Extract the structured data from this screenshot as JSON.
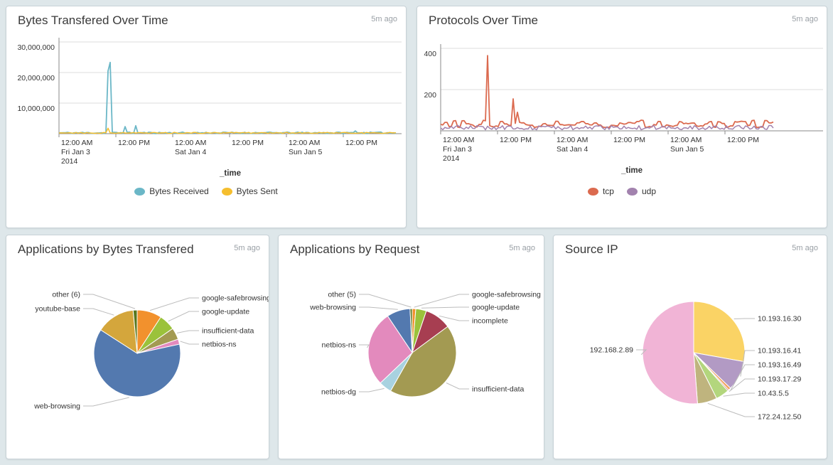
{
  "page": {
    "background": "#dee7ea"
  },
  "panels": [
    {
      "title": "Bytes Transfered Over Time",
      "ago": "5m ago"
    },
    {
      "title": "Protocols Over Time",
      "ago": "5m ago"
    },
    {
      "title": "Applications by Bytes Transfered",
      "ago": "5m ago"
    },
    {
      "title": "Applications by Request",
      "ago": "5m ago"
    },
    {
      "title": "Source IP",
      "ago": "5m ago"
    }
  ],
  "chart_data": [
    {
      "type": "line",
      "title": "Bytes Transfered Over Time",
      "xlabel": "_time",
      "x_ticks": [
        {
          "t": "12:00 AM",
          "d": "Fri Jan 3",
          "y": "2014"
        },
        {
          "t": "12:00 PM"
        },
        {
          "t": "12:00 AM",
          "d": "Sat Jan 4"
        },
        {
          "t": "12:00 PM"
        },
        {
          "t": "12:00 AM",
          "d": "Sun Jan 5"
        },
        {
          "t": "12:00 PM"
        }
      ],
      "y_ticks": [
        "10,000,000",
        "20,000,000",
        "30,000,000"
      ],
      "ylim": [
        0,
        32500000
      ],
      "grid": "horizontal",
      "legend_position": "bottom",
      "legend": [
        "Bytes Received",
        "Bytes Sent"
      ],
      "series": [
        {
          "name": "Bytes Received",
          "color": "#6bb7c7",
          "noise_min": 30000,
          "noise_max": 520000,
          "spikes": [
            [
              0.1425,
              20500000
            ],
            [
              0.1495,
              23300000
            ],
            [
              0.198,
              2300000
            ],
            [
              0.229,
              2600000
            ],
            [
              0.88,
              900000
            ]
          ]
        },
        {
          "name": "Bytes Sent",
          "color": "#f5be2e",
          "noise_min": 80000,
          "noise_max": 430000,
          "spikes": [
            [
              0.146,
              1800000
            ]
          ]
        }
      ]
    },
    {
      "type": "line",
      "title": "Protocols Over Time",
      "xlabel": "_time",
      "x_ticks": [
        {
          "t": "12:00 AM",
          "d": "Fri Jan 3",
          "y": "2014"
        },
        {
          "t": "12:00 PM"
        },
        {
          "t": "12:00 AM",
          "d": "Sat Jan 4"
        },
        {
          "t": "12:00 PM"
        },
        {
          "t": "12:00 AM",
          "d": "Sun Jan 5"
        },
        {
          "t": "12:00 PM"
        }
      ],
      "y_ticks": [
        "200",
        "400"
      ],
      "ylim": [
        0,
        430
      ],
      "grid": "horizontal",
      "legend_position": "bottom",
      "legend": [
        "tcp",
        "udp"
      ],
      "series": [
        {
          "name": "tcp",
          "color": "#db6a4f",
          "noise_min": 16,
          "noise_max": 52,
          "spikes": [
            [
              0.138,
              170
            ],
            [
              0.1425,
              365
            ],
            [
              0.2166,
              155
            ],
            [
              0.232,
              90
            ]
          ]
        },
        {
          "name": "udp",
          "color": "#a282ae",
          "noise_min": 5,
          "noise_max": 26,
          "spikes": []
        }
      ]
    },
    {
      "type": "pie",
      "title": "Applications by Bytes Transfered",
      "slices": [
        {
          "label": "google-safebrowsing",
          "pct": 9.2,
          "color": "#f2912d"
        },
        {
          "label": "google-update",
          "pct": 6.1,
          "color": "#9bc23b"
        },
        {
          "label": "insufficient-data",
          "pct": 4.4,
          "color": "#a39a52"
        },
        {
          "label": "netbios-ns",
          "pct": 1.9,
          "color": "#e38abd"
        },
        {
          "label": "web-browsing",
          "pct": 62.5,
          "color": "#5379af"
        },
        {
          "label": "youtube-base",
          "pct": 14.4,
          "color": "#d4a63c"
        },
        {
          "label": "other (6)",
          "pct": 1.5,
          "color": "#57771f"
        }
      ]
    },
    {
      "type": "pie",
      "title": "Applications by Request",
      "slices": [
        {
          "label": "google-safebrowsing",
          "pct": 1.3,
          "color": "#f2912d"
        },
        {
          "label": "google-update",
          "pct": 3.9,
          "color": "#9bc23b"
        },
        {
          "label": "incomplete",
          "pct": 9.7,
          "color": "#a73e51"
        },
        {
          "label": "insufficient-data",
          "pct": 43.3,
          "color": "#a39a52"
        },
        {
          "label": "netbios-dg",
          "pct": 4.7,
          "color": "#a8d2e0"
        },
        {
          "label": "netbios-ns",
          "pct": 27.7,
          "color": "#e38abd"
        },
        {
          "label": "web-browsing",
          "pct": 8.6,
          "color": "#5379af"
        },
        {
          "label": "other (5)",
          "pct": 0.8,
          "color": "#57771f"
        }
      ]
    },
    {
      "type": "pie",
      "title": "Source IP",
      "slices": [
        {
          "label": "10.193.16.30",
          "pct": 27.8,
          "color": "#fad365"
        },
        {
          "label": "10.193.16.41",
          "pct": 9.4,
          "color": "#b29ac4"
        },
        {
          "label": "10.193.16.49",
          "pct": 0.8,
          "color": "#f2a05b"
        },
        {
          "label": "10.193.17.29",
          "pct": 0.4,
          "color": "#c96a62"
        },
        {
          "label": "10.43.5.5",
          "pct": 4.2,
          "color": "#b3d67d"
        },
        {
          "label": "172.24.12.50",
          "pct": 6.2,
          "color": "#bfb47e"
        },
        {
          "label": "192.168.2.89",
          "pct": 51.2,
          "color": "#f1b4d6"
        }
      ]
    }
  ]
}
